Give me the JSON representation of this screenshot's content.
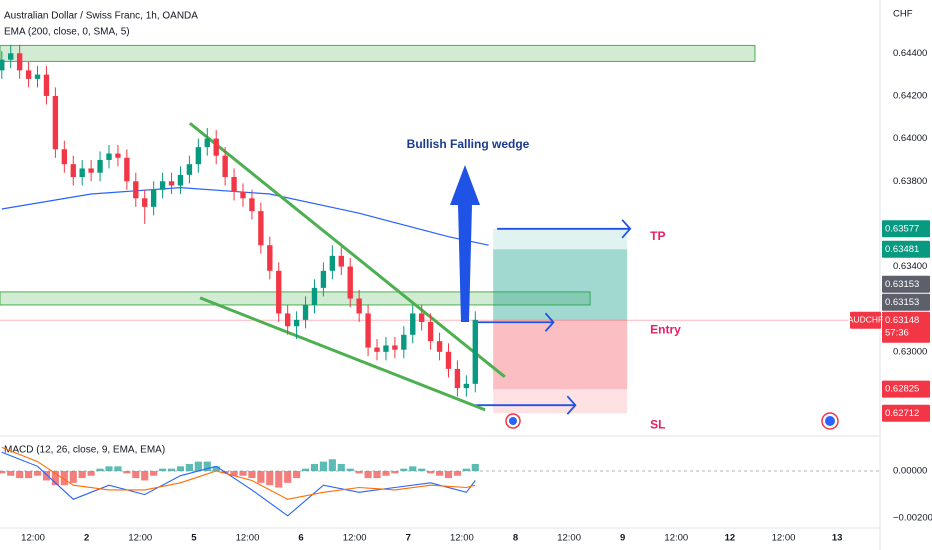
{
  "chart_data": {
    "type": "candlestick",
    "title": "Australian Dollar / Swiss Franc, 1h, OANDA",
    "currency": "CHF",
    "annotation": "Bullish Falling wedge",
    "colors": {
      "up": "#089981",
      "down": "#f23645"
    },
    "xlim": [
      -7.4,
      189.6
    ],
    "xticks": [
      {
        "value": 0,
        "label": "12:00"
      },
      {
        "value": 12,
        "label": "2"
      },
      {
        "value": 24,
        "label": "12:00"
      },
      {
        "value": 36,
        "label": "5"
      },
      {
        "value": 48,
        "label": "12:00"
      },
      {
        "value": 60,
        "label": "6"
      },
      {
        "value": 72,
        "label": "12:00"
      },
      {
        "value": 84,
        "label": "7"
      },
      {
        "value": 96,
        "label": "12:00"
      },
      {
        "value": 108,
        "label": "8"
      },
      {
        "value": 120,
        "label": "12:00"
      },
      {
        "value": 132,
        "label": "9"
      },
      {
        "value": 144,
        "label": "12:00"
      },
      {
        "value": 156,
        "label": "12"
      },
      {
        "value": 168,
        "label": "12:00"
      },
      {
        "value": 180,
        "label": "13"
      }
    ],
    "ylim": [
      0.6261,
      0.6465
    ],
    "yticks": [
      {
        "value": 0.644,
        "label": "0.64400"
      },
      {
        "value": 0.642,
        "label": "0.64200"
      },
      {
        "value": 0.64,
        "label": "0.64000"
      },
      {
        "value": 0.638,
        "label": "0.63800"
      },
      {
        "value": 0.634,
        "label": "0.63400"
      },
      {
        "value": 0.63,
        "label": "0.63000"
      }
    ],
    "grid": false,
    "x": [
      -7,
      -5,
      -3,
      -1,
      1,
      3,
      5,
      7,
      9,
      11,
      13,
      15,
      17,
      19,
      21,
      23,
      25,
      27,
      29,
      31,
      33,
      35,
      37,
      39,
      41,
      43,
      45,
      47,
      49,
      51,
      53,
      55,
      57,
      59,
      61,
      63,
      65,
      67,
      69,
      71,
      73,
      75,
      77,
      79,
      81,
      83,
      85,
      87,
      89,
      91,
      93,
      95,
      97,
      99
    ],
    "open": [
      0.6432,
      0.6437,
      0.644,
      0.6432,
      0.6428,
      0.643,
      0.642,
      0.6395,
      0.6388,
      0.6382,
      0.6386,
      0.6384,
      0.639,
      0.6393,
      0.6391,
      0.638,
      0.6372,
      0.6368,
      0.6376,
      0.638,
      0.6378,
      0.6383,
      0.6388,
      0.6396,
      0.64,
      0.6392,
      0.6382,
      0.6375,
      0.6372,
      0.6366,
      0.635,
      0.6338,
      0.6318,
      0.6312,
      0.6315,
      0.6322,
      0.633,
      0.6338,
      0.6345,
      0.634,
      0.6325,
      0.6318,
      0.6302,
      0.63,
      0.6303,
      0.6301,
      0.6308,
      0.6318,
      0.6314,
      0.6305,
      0.63,
      0.6292,
      0.6283,
      0.6285
    ],
    "high": [
      0.6441,
      0.6444,
      0.6444,
      0.6436,
      0.6434,
      0.6434,
      0.6424,
      0.6399,
      0.6392,
      0.639,
      0.639,
      0.6394,
      0.6397,
      0.6397,
      0.6395,
      0.6384,
      0.6376,
      0.638,
      0.6384,
      0.6384,
      0.6387,
      0.6392,
      0.64,
      0.6405,
      0.6404,
      0.6396,
      0.6386,
      0.6379,
      0.6376,
      0.637,
      0.6354,
      0.6342,
      0.6322,
      0.6319,
      0.6326,
      0.6334,
      0.6342,
      0.635,
      0.6349,
      0.6344,
      0.6329,
      0.6322,
      0.6306,
      0.6307,
      0.6307,
      0.6312,
      0.6322,
      0.6322,
      0.6318,
      0.6309,
      0.6304,
      0.6296,
      0.6289,
      0.6319
    ],
    "low": [
      0.6428,
      0.6433,
      0.6428,
      0.6424,
      0.6424,
      0.6416,
      0.6391,
      0.6384,
      0.6378,
      0.6378,
      0.638,
      0.638,
      0.6386,
      0.6387,
      0.6376,
      0.6368,
      0.636,
      0.6364,
      0.6372,
      0.6374,
      0.6374,
      0.6379,
      0.6384,
      0.6392,
      0.6388,
      0.6378,
      0.6371,
      0.6368,
      0.6362,
      0.6346,
      0.6334,
      0.6314,
      0.6308,
      0.6306,
      0.6311,
      0.6318,
      0.6326,
      0.6334,
      0.6336,
      0.6321,
      0.6314,
      0.6298,
      0.6296,
      0.6296,
      0.6297,
      0.6297,
      0.6304,
      0.631,
      0.6301,
      0.6296,
      0.6288,
      0.6279,
      0.6279,
      0.6281
    ],
    "close": [
      0.6437,
      0.644,
      0.6432,
      0.6428,
      0.643,
      0.642,
      0.6395,
      0.6388,
      0.6382,
      0.6386,
      0.6384,
      0.639,
      0.6393,
      0.6391,
      0.638,
      0.6372,
      0.6368,
      0.6376,
      0.638,
      0.6378,
      0.6383,
      0.6388,
      0.6396,
      0.64,
      0.6392,
      0.6382,
      0.6375,
      0.6372,
      0.6366,
      0.635,
      0.6338,
      0.6318,
      0.6312,
      0.6315,
      0.6322,
      0.633,
      0.6338,
      0.6345,
      0.634,
      0.6325,
      0.6318,
      0.6302,
      0.63,
      0.6303,
      0.6301,
      0.6308,
      0.6318,
      0.6314,
      0.6305,
      0.63,
      0.6292,
      0.6283,
      0.6285,
      0.6315
    ],
    "ema": {
      "name": "EMA (200, close, 0, SMA, 5)",
      "color": "#2962ff",
      "x": [
        -7,
        13,
        33,
        53,
        73,
        93,
        102
      ],
      "values": [
        0.6367,
        0.6374,
        0.6377,
        0.6374,
        0.6365,
        0.6354,
        0.635
      ]
    },
    "zones": [
      {
        "x": [
          -7.4,
          161.6
        ],
        "y": [
          0.64362,
          0.64437
        ]
      },
      {
        "x": [
          -7.4,
          124.7
        ],
        "y": [
          0.6322,
          0.63281
        ]
      }
    ],
    "trendlines": [
      {
        "x": [
          35.1,
          105.6
        ],
        "y": [
          0.64072,
          0.62883
        ]
      },
      {
        "x": [
          37.4,
          101.2
        ],
        "y": [
          0.63253,
          0.62728
        ]
      }
    ],
    "position": {
      "x": [
        103,
        133
      ],
      "tp": 0.63577,
      "target": 0.63481,
      "entry": 0.63148,
      "stop": 0.62825,
      "sl": 0.62712,
      "labels": {
        "tp": "TP",
        "entry": "Entry",
        "sl": "SL"
      }
    },
    "price_labels": [
      {
        "value": 0.63577,
        "color": "#089981"
      },
      {
        "value": 0.63481,
        "color": "#089981"
      },
      {
        "value": 0.63153,
        "color": "#5d606b"
      },
      {
        "value": 0.63153,
        "color": "#5d606b"
      },
      {
        "value": 0.63148,
        "color": "#f23645",
        "symbol": "AUDCHF",
        "countdown": "57:36"
      },
      {
        "value": 0.62825,
        "color": "#f23645"
      },
      {
        "value": 0.62712,
        "color": "#f23645"
      }
    ],
    "macd": {
      "name": "MACD (12, 26, close, 9, EMA, EMA)",
      "y2lim": [
        -0.0025,
        0.0014
      ],
      "y2ticks": [
        {
          "value": 0,
          "label": "0.00000"
        },
        {
          "value": -0.002,
          "label": "−0.00200"
        }
      ],
      "colors": {
        "up": "#26a69a",
        "down": "#ef5350",
        "macd": "#2962ff",
        "signal": "#ff6d00"
      },
      "histogram": [
        -0.0001,
        -0.0002,
        -0.0003,
        -0.0003,
        -0.0002,
        -0.0004,
        -0.0006,
        -0.0006,
        -0.0005,
        -0.0003,
        -0.0002,
        0.0001,
        0.0002,
        0.0002,
        -0.0001,
        -0.0003,
        -0.0004,
        -0.0002,
        0.0001,
        0.0001,
        0.0002,
        0.0003,
        0.0004,
        0.0004,
        0.0002,
        -0.0001,
        -0.0002,
        -0.0002,
        -0.0003,
        -0.0005,
        -0.0006,
        -0.0007,
        -0.0005,
        -0.0003,
        0.0001,
        0.0003,
        0.0004,
        0.0005,
        0.0003,
        0.0001,
        -0.0001,
        -0.0003,
        -0.0003,
        -0.0002,
        -0.0001,
        0.0001,
        0.0002,
        0.0001,
        -0.0001,
        -0.0002,
        -0.0003,
        -0.0002,
        0.0001,
        0.0003
      ],
      "line_x": [
        -7,
        1,
        9,
        17,
        25,
        33,
        41,
        49,
        57,
        65,
        73,
        81,
        89,
        97,
        99
      ],
      "macd_line": [
        0.0008,
        0.0002,
        -0.0012,
        -0.0006,
        -0.001,
        -0.0002,
        0.0002,
        -0.0008,
        -0.0019,
        -0.0006,
        -0.0009,
        -0.0007,
        -0.0005,
        -0.0009,
        -0.0004
      ],
      "signal_line": [
        0.001,
        0.0004,
        -0.0006,
        -0.0008,
        -0.0008,
        -0.0005,
        0,
        -0.0004,
        -0.0012,
        -0.0009,
        -0.0007,
        -0.0008,
        -0.0006,
        -0.0007,
        -0.0006
      ]
    }
  }
}
